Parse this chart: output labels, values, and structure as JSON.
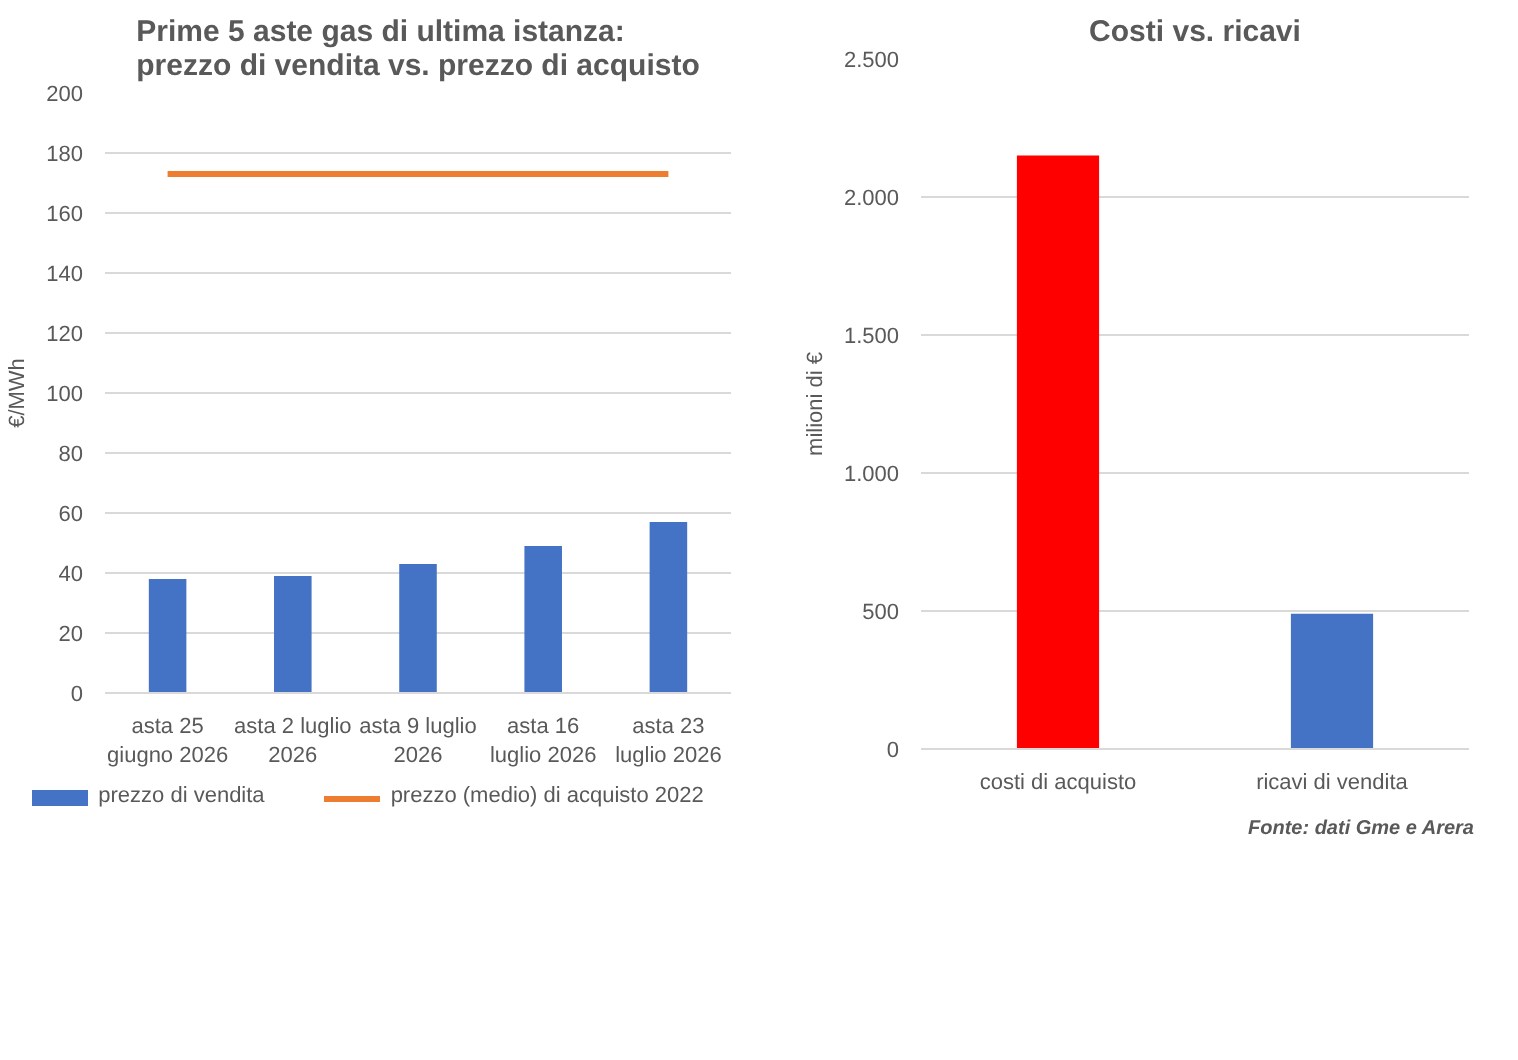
{
  "chart_data": [
    {
      "type": "bar",
      "title": "Prime 5 aste gas di ultima istanza:\nprezzo di vendita vs. prezzo di acquisto",
      "ylabel": "€/MWh",
      "categories": [
        "asta 25 giugno 2026",
        "asta 2 luglio 2026",
        "asta 9 luglio 2026",
        "asta 16 luglio 2026",
        "asta 23 luglio 2026"
      ],
      "series": [
        {
          "name": "prezzo di vendita",
          "type": "bar",
          "color": "#4472c4",
          "values": [
            38,
            39,
            43,
            49,
            57
          ]
        },
        {
          "name": "prezzo (medio) di acquisto 2022",
          "type": "line",
          "color": "#ed7d31",
          "values": [
            173,
            173,
            173,
            173,
            173
          ]
        }
      ],
      "ylim": [
        0,
        200
      ],
      "yticks": [
        0,
        20,
        40,
        60,
        80,
        100,
        120,
        140,
        160,
        180,
        200
      ],
      "grid": "y",
      "legend": "bottom"
    },
    {
      "type": "bar",
      "title": "Costi vs. ricavi",
      "ylabel": "milioni di €",
      "categories": [
        "costi di acquisto",
        "ricavi di vendita"
      ],
      "values": [
        2150,
        490
      ],
      "colors": [
        "#ff0000",
        "#4472c4"
      ],
      "ylim": [
        0,
        2500
      ],
      "yticks": [
        0,
        {
          "value": 500,
          "label": "500"
        },
        {
          "value": 1000,
          "label": "1.000"
        },
        {
          "value": 1500,
          "label": "1.500"
        },
        {
          "value": 2000,
          "label": "2.000"
        },
        {
          "value": 2500,
          "label": "2.500"
        }
      ],
      "grid": "y",
      "annotations": [
        "Fonte: dati Gme e Arera"
      ]
    }
  ]
}
